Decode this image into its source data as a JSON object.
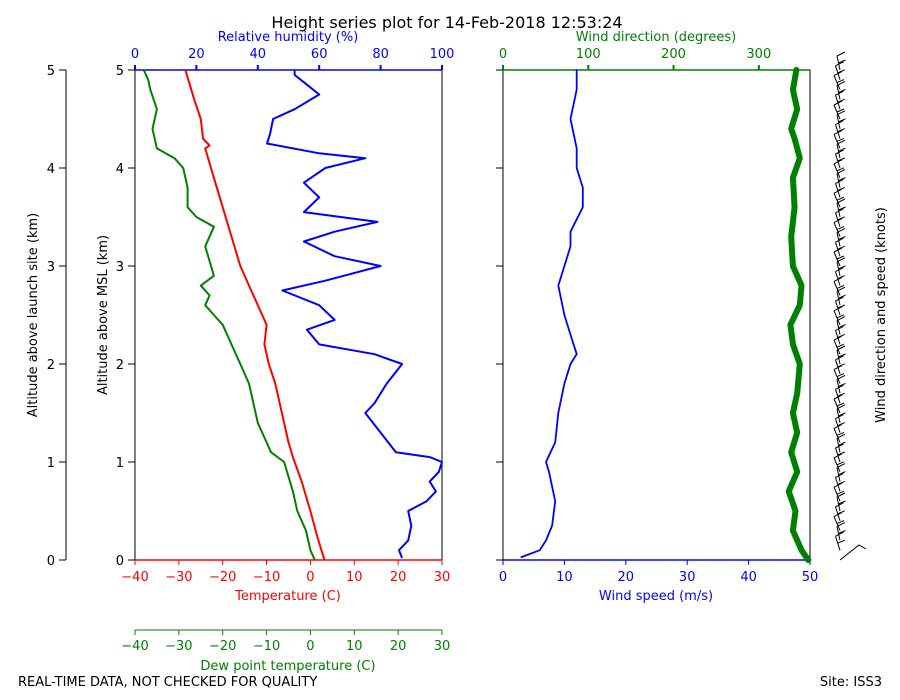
{
  "title": "Height series plot for 14-Feb-2018 12:53:24",
  "footer_left": "REAL-TIME DATA, NOT CHECKED FOR QUALITY",
  "footer_right": "Site: ISS3",
  "colors": {
    "temperature": "#ff0000",
    "dewpoint": "#008000",
    "rh": "#0000ff",
    "wind_speed": "#0000ff",
    "wind_dir": "#008000",
    "axis": "#000000"
  },
  "chart_data": [
    {
      "type": "line",
      "name": "thermo-panel",
      "ylabel_outer": "Altitude above launch site (km)",
      "ylabel_inner": "Altitude above MSL (km)",
      "ylim": [
        0,
        5
      ],
      "yticks": [
        0,
        1,
        2,
        3,
        4,
        5
      ],
      "axes": {
        "temperature": {
          "label": "Temperature (C)",
          "lim": [
            -40,
            30
          ],
          "ticks": [
            -40,
            -30,
            -20,
            -10,
            0,
            10,
            20,
            30
          ]
        },
        "dewpoint": {
          "label": "Dew point temperature (C)",
          "lim": [
            -40,
            30
          ],
          "ticks": [
            -40,
            -30,
            -20,
            -10,
            0,
            10,
            20,
            30
          ]
        },
        "rh": {
          "label": "Relative humidity (%)",
          "lim": [
            0,
            100
          ],
          "ticks": [
            0,
            20,
            40,
            60,
            80,
            100
          ]
        }
      },
      "series": [
        {
          "name": "Temperature",
          "axis": "temperature",
          "points": [
            [
              3.2,
              0
            ],
            [
              2.5,
              0.1
            ],
            [
              1.5,
              0.25
            ],
            [
              0,
              0.5
            ],
            [
              -2,
              0.8
            ],
            [
              -4,
              1.05
            ],
            [
              -5,
              1.2
            ],
            [
              -6.5,
              1.5
            ],
            [
              -8,
              1.8
            ],
            [
              -9.5,
              2.0
            ],
            [
              -10.5,
              2.2
            ],
            [
              -10,
              2.4
            ],
            [
              -12,
              2.6
            ],
            [
              -14,
              2.8
            ],
            [
              -16,
              3.0
            ],
            [
              -18,
              3.3
            ],
            [
              -20,
              3.6
            ],
            [
              -22,
              3.9
            ],
            [
              -24,
              4.2
            ],
            [
              -23,
              4.23
            ],
            [
              -24.5,
              4.3
            ],
            [
              -25,
              4.5
            ],
            [
              -26.5,
              4.7
            ],
            [
              -27.5,
              4.85
            ],
            [
              -28.5,
              5.0
            ]
          ]
        },
        {
          "name": "Dew point",
          "axis": "dewpoint",
          "points": [
            [
              1,
              0
            ],
            [
              0,
              0.1
            ],
            [
              -1,
              0.3
            ],
            [
              -3,
              0.5
            ],
            [
              -4,
              0.7
            ],
            [
              -5,
              0.85
            ],
            [
              -6,
              1.0
            ],
            [
              -9,
              1.1
            ],
            [
              -10,
              1.2
            ],
            [
              -12,
              1.4
            ],
            [
              -13,
              1.6
            ],
            [
              -14,
              1.8
            ],
            [
              -16,
              2.0
            ],
            [
              -18,
              2.2
            ],
            [
              -20,
              2.4
            ],
            [
              -22,
              2.5
            ],
            [
              -24,
              2.6
            ],
            [
              -23,
              2.7
            ],
            [
              -25,
              2.8
            ],
            [
              -22,
              2.9
            ],
            [
              -23,
              3.05
            ],
            [
              -24,
              3.2
            ],
            [
              -22,
              3.4
            ],
            [
              -26,
              3.5
            ],
            [
              -28,
              3.6
            ],
            [
              -28,
              3.8
            ],
            [
              -29,
              4.0
            ],
            [
              -31,
              4.1
            ],
            [
              -35,
              4.2
            ],
            [
              -36,
              4.4
            ],
            [
              -35,
              4.6
            ],
            [
              -36.5,
              4.8
            ],
            [
              -37,
              4.9
            ],
            [
              -38,
              5.0
            ]
          ]
        },
        {
          "name": "Relative humidity",
          "axis": "rh",
          "points": [
            [
              87,
              0.02
            ],
            [
              86,
              0.1
            ],
            [
              89,
              0.2
            ],
            [
              90,
              0.35
            ],
            [
              89,
              0.5
            ],
            [
              95,
              0.6
            ],
            [
              98,
              0.7
            ],
            [
              96,
              0.8
            ],
            [
              99,
              0.9
            ],
            [
              100,
              1.0
            ],
            [
              96,
              1.05
            ],
            [
              85,
              1.1
            ],
            [
              80,
              1.3
            ],
            [
              75,
              1.5
            ],
            [
              78,
              1.6
            ],
            [
              82,
              1.8
            ],
            [
              87,
              2.0
            ],
            [
              78,
              2.1
            ],
            [
              60,
              2.2
            ],
            [
              56,
              2.35
            ],
            [
              65,
              2.45
            ],
            [
              60,
              2.6
            ],
            [
              48,
              2.75
            ],
            [
              62,
              2.85
            ],
            [
              80,
              3.0
            ],
            [
              65,
              3.1
            ],
            [
              55,
              3.25
            ],
            [
              65,
              3.35
            ],
            [
              79,
              3.45
            ],
            [
              55,
              3.55
            ],
            [
              60,
              3.7
            ],
            [
              55,
              3.85
            ],
            [
              62,
              4.0
            ],
            [
              75,
              4.1
            ],
            [
              60,
              4.15
            ],
            [
              43,
              4.25
            ],
            [
              44,
              4.35
            ],
            [
              45,
              4.5
            ],
            [
              52,
              4.6
            ],
            [
              60,
              4.75
            ],
            [
              56,
              4.85
            ],
            [
              52,
              4.95
            ],
            [
              52,
              5.0
            ]
          ]
        }
      ]
    },
    {
      "type": "line",
      "name": "wind-panel",
      "ylim": [
        0,
        5
      ],
      "axes": {
        "wind_speed": {
          "label": "Wind speed (m/s)",
          "lim": [
            0,
            50
          ],
          "ticks": [
            0,
            10,
            20,
            30,
            40,
            50
          ]
        },
        "wind_dir": {
          "label": "Wind direction (degrees)",
          "lim": [
            0,
            360
          ],
          "ticks": [
            0,
            100,
            200,
            300
          ]
        }
      },
      "series": [
        {
          "name": "Wind speed",
          "axis": "wind_speed",
          "points": [
            [
              3,
              0.03
            ],
            [
              6,
              0.1
            ],
            [
              7,
              0.2
            ],
            [
              8,
              0.35
            ],
            [
              8.5,
              0.6
            ],
            [
              7.5,
              0.9
            ],
            [
              7,
              1.0
            ],
            [
              8.5,
              1.2
            ],
            [
              9,
              1.5
            ],
            [
              10,
              1.8
            ],
            [
              11,
              2.0
            ],
            [
              12,
              2.1
            ],
            [
              11,
              2.3
            ],
            [
              10,
              2.5
            ],
            [
              9,
              2.8
            ],
            [
              10,
              3.0
            ],
            [
              11,
              3.2
            ],
            [
              11,
              3.35
            ],
            [
              13,
              3.6
            ],
            [
              13,
              3.8
            ],
            [
              12,
              4.0
            ],
            [
              12,
              4.2
            ],
            [
              11,
              4.5
            ],
            [
              12,
              4.8
            ],
            [
              12,
              5.0
            ]
          ]
        },
        {
          "name": "Wind direction",
          "axis": "wind_dir",
          "points": [
            [
              358,
              0.0
            ],
            [
              350,
              0.1
            ],
            [
              340,
              0.3
            ],
            [
              343,
              0.5
            ],
            [
              335,
              0.7
            ],
            [
              345,
              0.9
            ],
            [
              338,
              1.1
            ],
            [
              345,
              1.3
            ],
            [
              340,
              1.5
            ],
            [
              345,
              1.7
            ],
            [
              348,
              2.0
            ],
            [
              340,
              2.2
            ],
            [
              337,
              2.4
            ],
            [
              348,
              2.6
            ],
            [
              350,
              2.8
            ],
            [
              340,
              3.0
            ],
            [
              338,
              3.3
            ],
            [
              342,
              3.6
            ],
            [
              340,
              3.9
            ],
            [
              348,
              4.1
            ],
            [
              342,
              4.3
            ],
            [
              338,
              4.4
            ],
            [
              345,
              4.6
            ],
            [
              340,
              4.8
            ],
            [
              344,
              5.0
            ]
          ]
        }
      ]
    },
    {
      "type": "barbs",
      "name": "wind-barbs",
      "ylabel": "Wind direction and speed (knots)",
      "ylim": [
        0,
        5
      ],
      "levels": [
        0,
        0.1,
        0.2,
        0.3,
        0.4,
        0.5,
        0.6,
        0.7,
        0.8,
        0.9,
        1.0,
        1.1,
        1.2,
        1.3,
        1.4,
        1.5,
        1.6,
        1.7,
        1.8,
        1.9,
        2.0,
        2.1,
        2.2,
        2.3,
        2.4,
        2.5,
        2.6,
        2.7,
        2.8,
        2.9,
        3.0,
        3.1,
        3.2,
        3.3,
        3.4,
        3.5,
        3.6,
        3.7,
        3.8,
        3.9,
        4.0,
        4.1,
        4.2,
        4.3,
        4.4,
        4.5,
        4.6,
        4.7,
        4.8,
        4.9,
        5.0
      ]
    }
  ]
}
